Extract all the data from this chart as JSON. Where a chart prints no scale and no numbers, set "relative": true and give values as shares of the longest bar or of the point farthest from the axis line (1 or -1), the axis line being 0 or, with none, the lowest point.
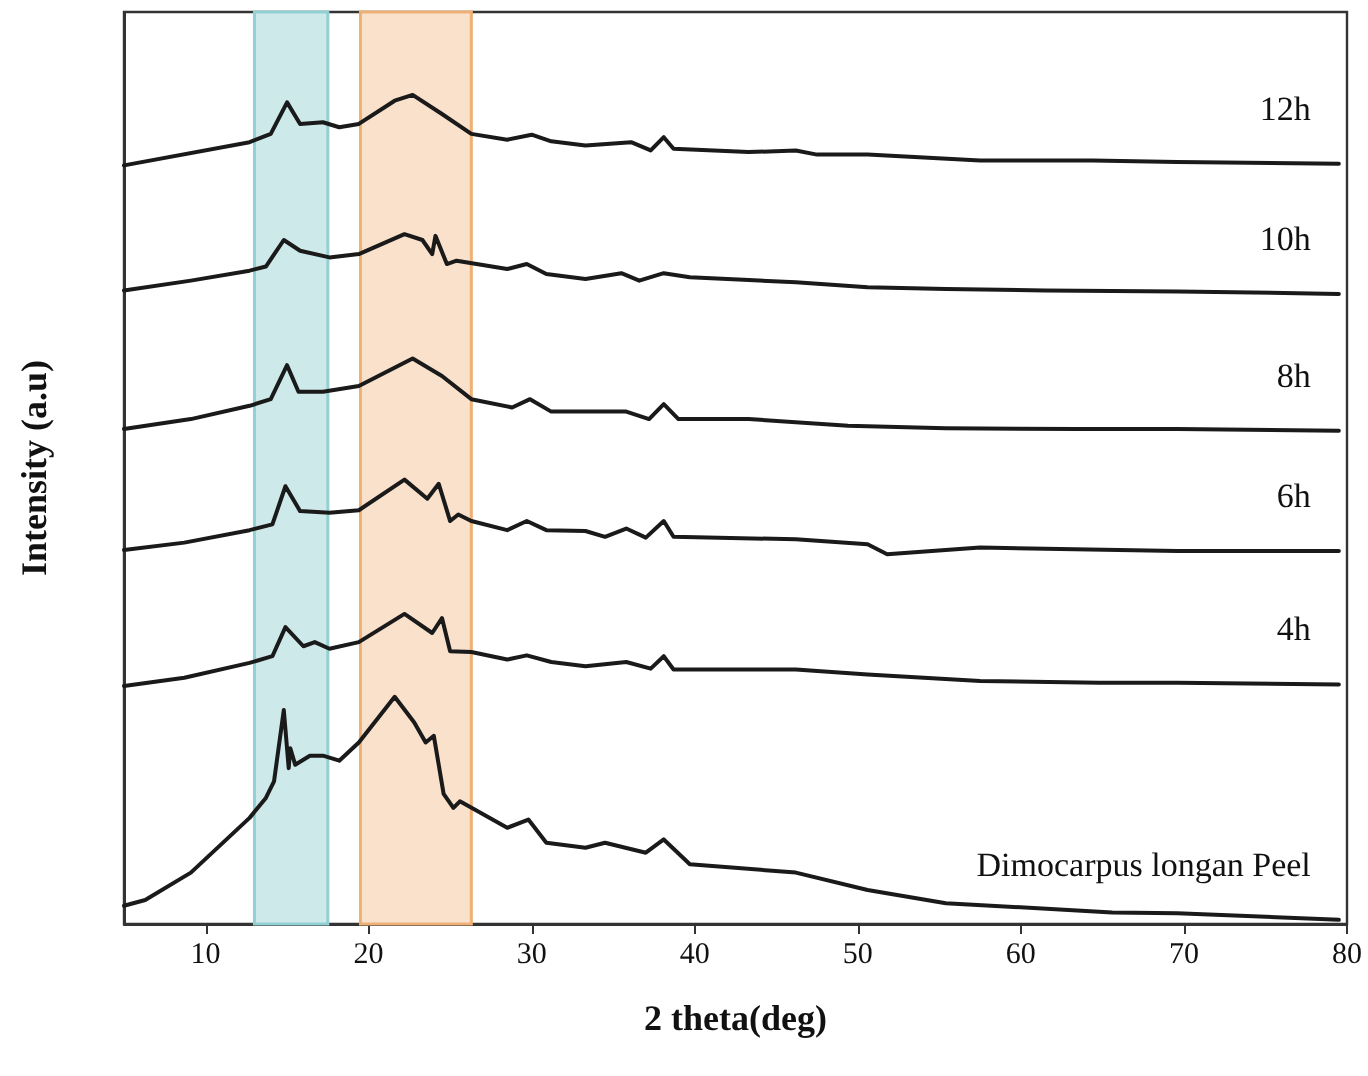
{
  "chart_data": {
    "type": "line",
    "relative": true,
    "xlabel": "2 theta(deg)",
    "ylabel": "Intensity (a.u)",
    "xlim": [
      5,
      80
    ],
    "xticks": [
      10,
      20,
      30,
      40,
      50,
      60,
      70,
      80
    ],
    "grid": false,
    "legend": false,
    "marker": "none",
    "line_style": "solid",
    "bands": [
      {
        "axis": "x",
        "from": 13,
        "to": 17.5,
        "color": "#cde9ea"
      },
      {
        "axis": "x",
        "from": 19.5,
        "to": 26.3,
        "color": "#f9e1cb"
      }
    ],
    "series": [
      {
        "name": "12h",
        "color": "#1a1a1a",
        "x": [
          5,
          12.7,
          14,
          15,
          15.8,
          17.2,
          18.2,
          19.4,
          21.6,
          22.7,
          24.5,
          26.3,
          28.5,
          30,
          31.2,
          33.3,
          36.1,
          37.3,
          38.1,
          38.7,
          43.3,
          46.2,
          47.5,
          50.6,
          57.5,
          59.5,
          64.4,
          69.6,
          79.5
        ],
        "values": [
          0.915,
          0.943,
          0.953,
          0.991,
          0.965,
          0.967,
          0.961,
          0.965,
          0.993,
          1.0,
          0.977,
          0.953,
          0.946,
          0.952,
          0.944,
          0.939,
          0.943,
          0.933,
          0.949,
          0.935,
          0.931,
          0.933,
          0.928,
          0.928,
          0.921,
          0.921,
          0.921,
          0.919,
          0.917
        ]
      },
      {
        "name": "10h",
        "color": "#1a1a1a",
        "x": [
          5,
          9.1,
          12.7,
          13.7,
          14.8,
          15.8,
          17.6,
          19.4,
          22.2,
          23.3,
          23.9,
          24.1,
          24.8,
          25.4,
          28.5,
          29.7,
          30.9,
          33.3,
          35.5,
          36.6,
          38.1,
          39.7,
          43,
          46.2,
          50.6,
          55.4,
          61.5,
          69.6,
          79.5
        ],
        "values": [
          0.764,
          0.776,
          0.788,
          0.793,
          0.825,
          0.812,
          0.804,
          0.808,
          0.832,
          0.825,
          0.808,
          0.83,
          0.796,
          0.8,
          0.79,
          0.796,
          0.784,
          0.778,
          0.785,
          0.776,
          0.785,
          0.78,
          0.777,
          0.774,
          0.768,
          0.766,
          0.764,
          0.763,
          0.76
        ]
      },
      {
        "name": "8h",
        "color": "#1a1a1a",
        "x": [
          5,
          9.1,
          12.7,
          14,
          15,
          15.7,
          17.2,
          19.4,
          22.7,
          24.5,
          26.3,
          28.8,
          29.9,
          31.2,
          33.3,
          35.8,
          37.2,
          38.1,
          39,
          43.3,
          49.4,
          55.4,
          63.5,
          69.6,
          79.5
        ],
        "values": [
          0.597,
          0.609,
          0.625,
          0.633,
          0.674,
          0.642,
          0.642,
          0.649,
          0.682,
          0.661,
          0.633,
          0.623,
          0.633,
          0.618,
          0.618,
          0.618,
          0.609,
          0.627,
          0.609,
          0.609,
          0.601,
          0.598,
          0.597,
          0.597,
          0.595
        ]
      },
      {
        "name": "6h",
        "color": "#1a1a1a",
        "x": [
          5,
          8.7,
          12.7,
          14.1,
          14.9,
          15.8,
          17.6,
          19.4,
          22.2,
          23.6,
          24.3,
          25,
          25.5,
          26.3,
          28.5,
          29.7,
          30.9,
          33.3,
          34.5,
          35.8,
          37,
          38.1,
          38.7,
          46.2,
          50.6,
          51.8,
          57.5,
          69.6,
          79.5
        ],
        "values": [
          0.451,
          0.46,
          0.475,
          0.482,
          0.528,
          0.498,
          0.496,
          0.499,
          0.536,
          0.513,
          0.531,
          0.486,
          0.494,
          0.486,
          0.475,
          0.486,
          0.475,
          0.474,
          0.467,
          0.477,
          0.466,
          0.486,
          0.467,
          0.464,
          0.458,
          0.446,
          0.454,
          0.45,
          0.45
        ]
      },
      {
        "name": "4h",
        "color": "#1a1a1a",
        "x": [
          5,
          8.7,
          12.7,
          14.1,
          14.9,
          16,
          16.7,
          17.6,
          19.4,
          22.2,
          23.9,
          24.5,
          25,
          26.3,
          28.5,
          29.7,
          31.2,
          33.3,
          35.8,
          37.3,
          38.1,
          38.7,
          46.2,
          50.6,
          57.5,
          64.8,
          69.6,
          79.5
        ],
        "values": [
          0.287,
          0.297,
          0.315,
          0.323,
          0.358,
          0.335,
          0.34,
          0.332,
          0.34,
          0.374,
          0.351,
          0.369,
          0.329,
          0.328,
          0.319,
          0.324,
          0.316,
          0.311,
          0.316,
          0.308,
          0.323,
          0.307,
          0.307,
          0.301,
          0.293,
          0.291,
          0.291,
          0.289
        ]
      },
      {
        "name": "Dimocarpus longan Peel",
        "color": "#1a1a1a",
        "x": [
          5,
          6.3,
          9.1,
          12.7,
          13.7,
          14.2,
          14.8,
          15.1,
          15.2,
          15.5,
          16.4,
          17.2,
          18.2,
          19.4,
          21.6,
          22.8,
          23.5,
          24,
          24.6,
          25.2,
          25.6,
          28.5,
          29.8,
          30.9,
          33.3,
          34.5,
          37,
          38.1,
          39.7,
          46.2,
          50.6,
          55.4,
          65.6,
          69.6,
          79.5
        ],
        "values": [
          0.022,
          0.029,
          0.062,
          0.128,
          0.152,
          0.172,
          0.258,
          0.188,
          0.212,
          0.192,
          0.203,
          0.203,
          0.197,
          0.219,
          0.274,
          0.243,
          0.219,
          0.227,
          0.157,
          0.14,
          0.148,
          0.116,
          0.126,
          0.098,
          0.092,
          0.098,
          0.086,
          0.102,
          0.072,
          0.062,
          0.041,
          0.025,
          0.014,
          0.013,
          0.005
        ]
      }
    ]
  }
}
